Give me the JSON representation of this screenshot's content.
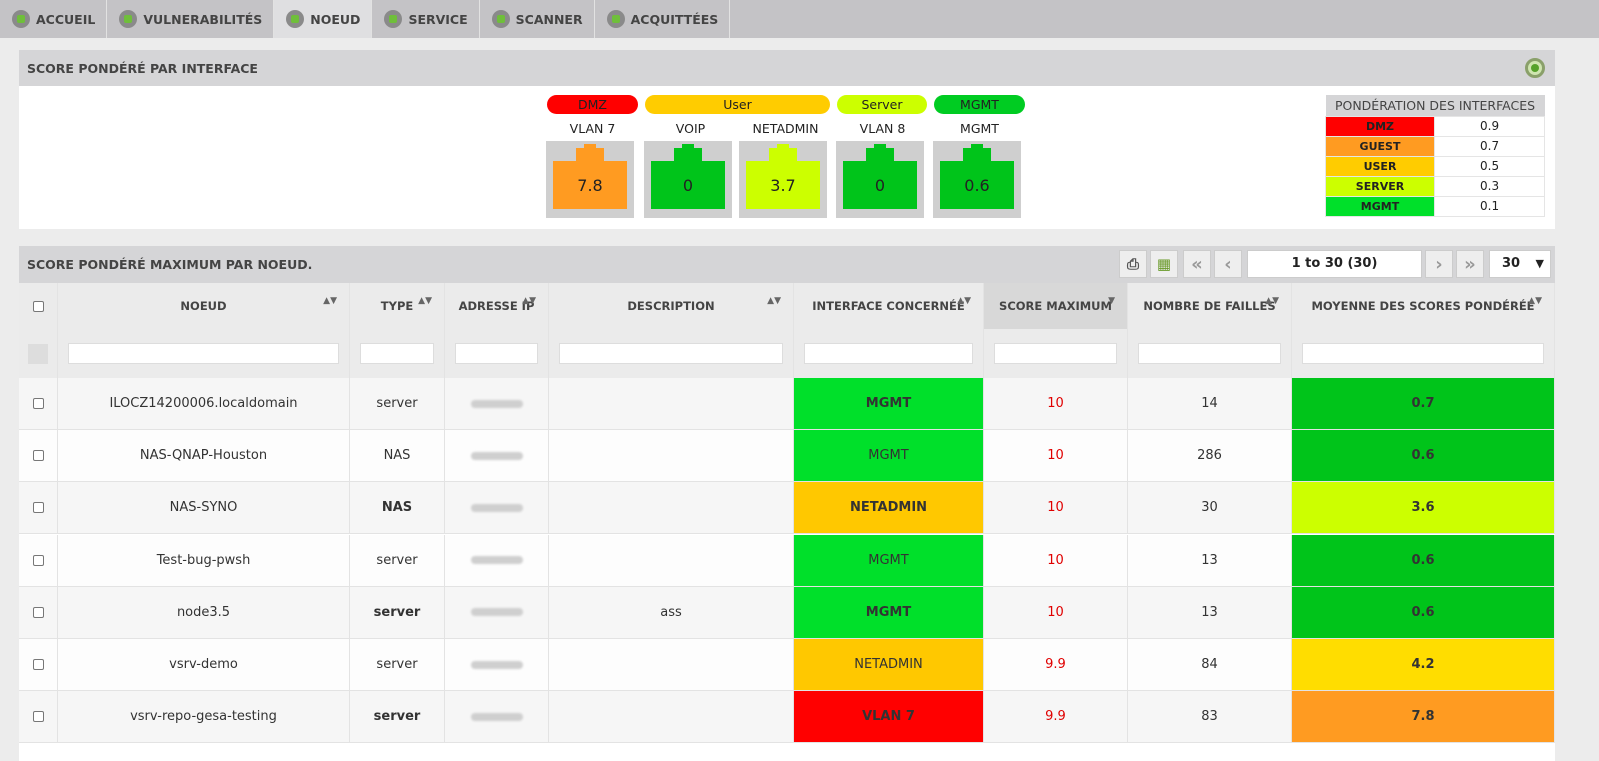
{
  "nav": {
    "tabs": [
      {
        "label": "ACCUEIL",
        "icon": "home-icon"
      },
      {
        "label": "VULNERABILITÉS",
        "icon": "shield-icon"
      },
      {
        "label": "NOEUD",
        "icon": "monitor-icon"
      },
      {
        "label": "SERVICE",
        "icon": "service-icon"
      },
      {
        "label": "SCANNER",
        "icon": "scanner-icon"
      },
      {
        "label": "ACQUITTÉES",
        "icon": "acknowledged-icon"
      }
    ],
    "active": "NOEUD"
  },
  "interfaces_panel": {
    "title": "SCORE PONDÉRÉ PAR INTERFACE",
    "groups": [
      {
        "label": "DMZ",
        "color": "#ff0000"
      },
      {
        "label": "User",
        "color": "#ffcc00"
      },
      {
        "label": "Server",
        "color": "#ccff00"
      },
      {
        "label": "MGMT",
        "color": "#00cc22"
      }
    ],
    "interfaces": [
      {
        "name": "VLAN 7",
        "score": "7.8",
        "color": "#ff9b21"
      },
      {
        "name": "VOIP",
        "score": "0",
        "color": "#00c41a"
      },
      {
        "name": "NETADMIN",
        "score": "3.7",
        "color": "#ccff00"
      },
      {
        "name": "VLAN 8",
        "score": "0",
        "color": "#00c41a"
      },
      {
        "name": "MGMT",
        "score": "0.6",
        "color": "#00c41a"
      }
    ],
    "weights": {
      "title": "PONDÉRATION DES INTERFACES",
      "rows": [
        {
          "label": "DMZ",
          "value": "0.9",
          "color": "#ff0000"
        },
        {
          "label": "GUEST",
          "value": "0.7",
          "color": "#ff9b21"
        },
        {
          "label": "USER",
          "value": "0.5",
          "color": "#ffcc00"
        },
        {
          "label": "SERVER",
          "value": "0.3",
          "color": "#ccff00"
        },
        {
          "label": "MGMT",
          "value": "0.1",
          "color": "#00e02a"
        }
      ]
    }
  },
  "nodes_panel": {
    "title": "SCORE PONDÉRÉ MAXIMUM PAR NOEUD.",
    "pagination": {
      "info": "1 to 30 (30)",
      "page_size": "30"
    },
    "columns": [
      "NOEUD",
      "TYPE",
      "ADRESSE IP",
      "DESCRIPTION",
      "INTERFACE CONCERNÉE",
      "SCORE MAXIMUM",
      "NOMBRE DE FAILLES",
      "MOYENNE DES SCORES PONDÉRÉE"
    ],
    "rows": [
      {
        "node": "ILOCZ14200006.localdomain",
        "type": "server",
        "description": "",
        "interface": "MGMT",
        "iface_color": "#00e02a",
        "max_score": "10",
        "failles": "14",
        "avg": "0.7",
        "avg_color": "#00c41a"
      },
      {
        "node": "NAS-QNAP-Houston",
        "type": "NAS",
        "description": "",
        "interface": "MGMT",
        "iface_color": "#00e02a",
        "max_score": "10",
        "failles": "286",
        "avg": "0.6",
        "avg_color": "#00c41a"
      },
      {
        "node": "NAS-SYNO",
        "type": "NAS",
        "description": "",
        "interface": "NETADMIN",
        "iface_color": "#ffc800",
        "max_score": "10",
        "failles": "30",
        "avg": "3.6",
        "avg_color": "#ccff00"
      },
      {
        "node": "Test-bug-pwsh",
        "type": "server",
        "description": "",
        "interface": "MGMT",
        "iface_color": "#00e02a",
        "max_score": "10",
        "failles": "13",
        "avg": "0.6",
        "avg_color": "#00c41a"
      },
      {
        "node": "node3.5",
        "type": "server",
        "description": "ass",
        "interface": "MGMT",
        "iface_color": "#00e02a",
        "max_score": "10",
        "failles": "13",
        "avg": "0.6",
        "avg_color": "#00c41a"
      },
      {
        "node": "vsrv-demo",
        "type": "server",
        "description": "",
        "interface": "NETADMIN",
        "iface_color": "#ffc800",
        "max_score": "9.9",
        "failles": "84",
        "avg": "4.2",
        "avg_color": "#ffdd00"
      },
      {
        "node": "vsrv-repo-gesa-testing",
        "type": "server",
        "description": "",
        "interface": "VLAN 7",
        "iface_color": "#ff0000",
        "max_score": "9.9",
        "failles": "83",
        "avg": "7.8",
        "avg_color": "#ff9b21"
      }
    ]
  }
}
